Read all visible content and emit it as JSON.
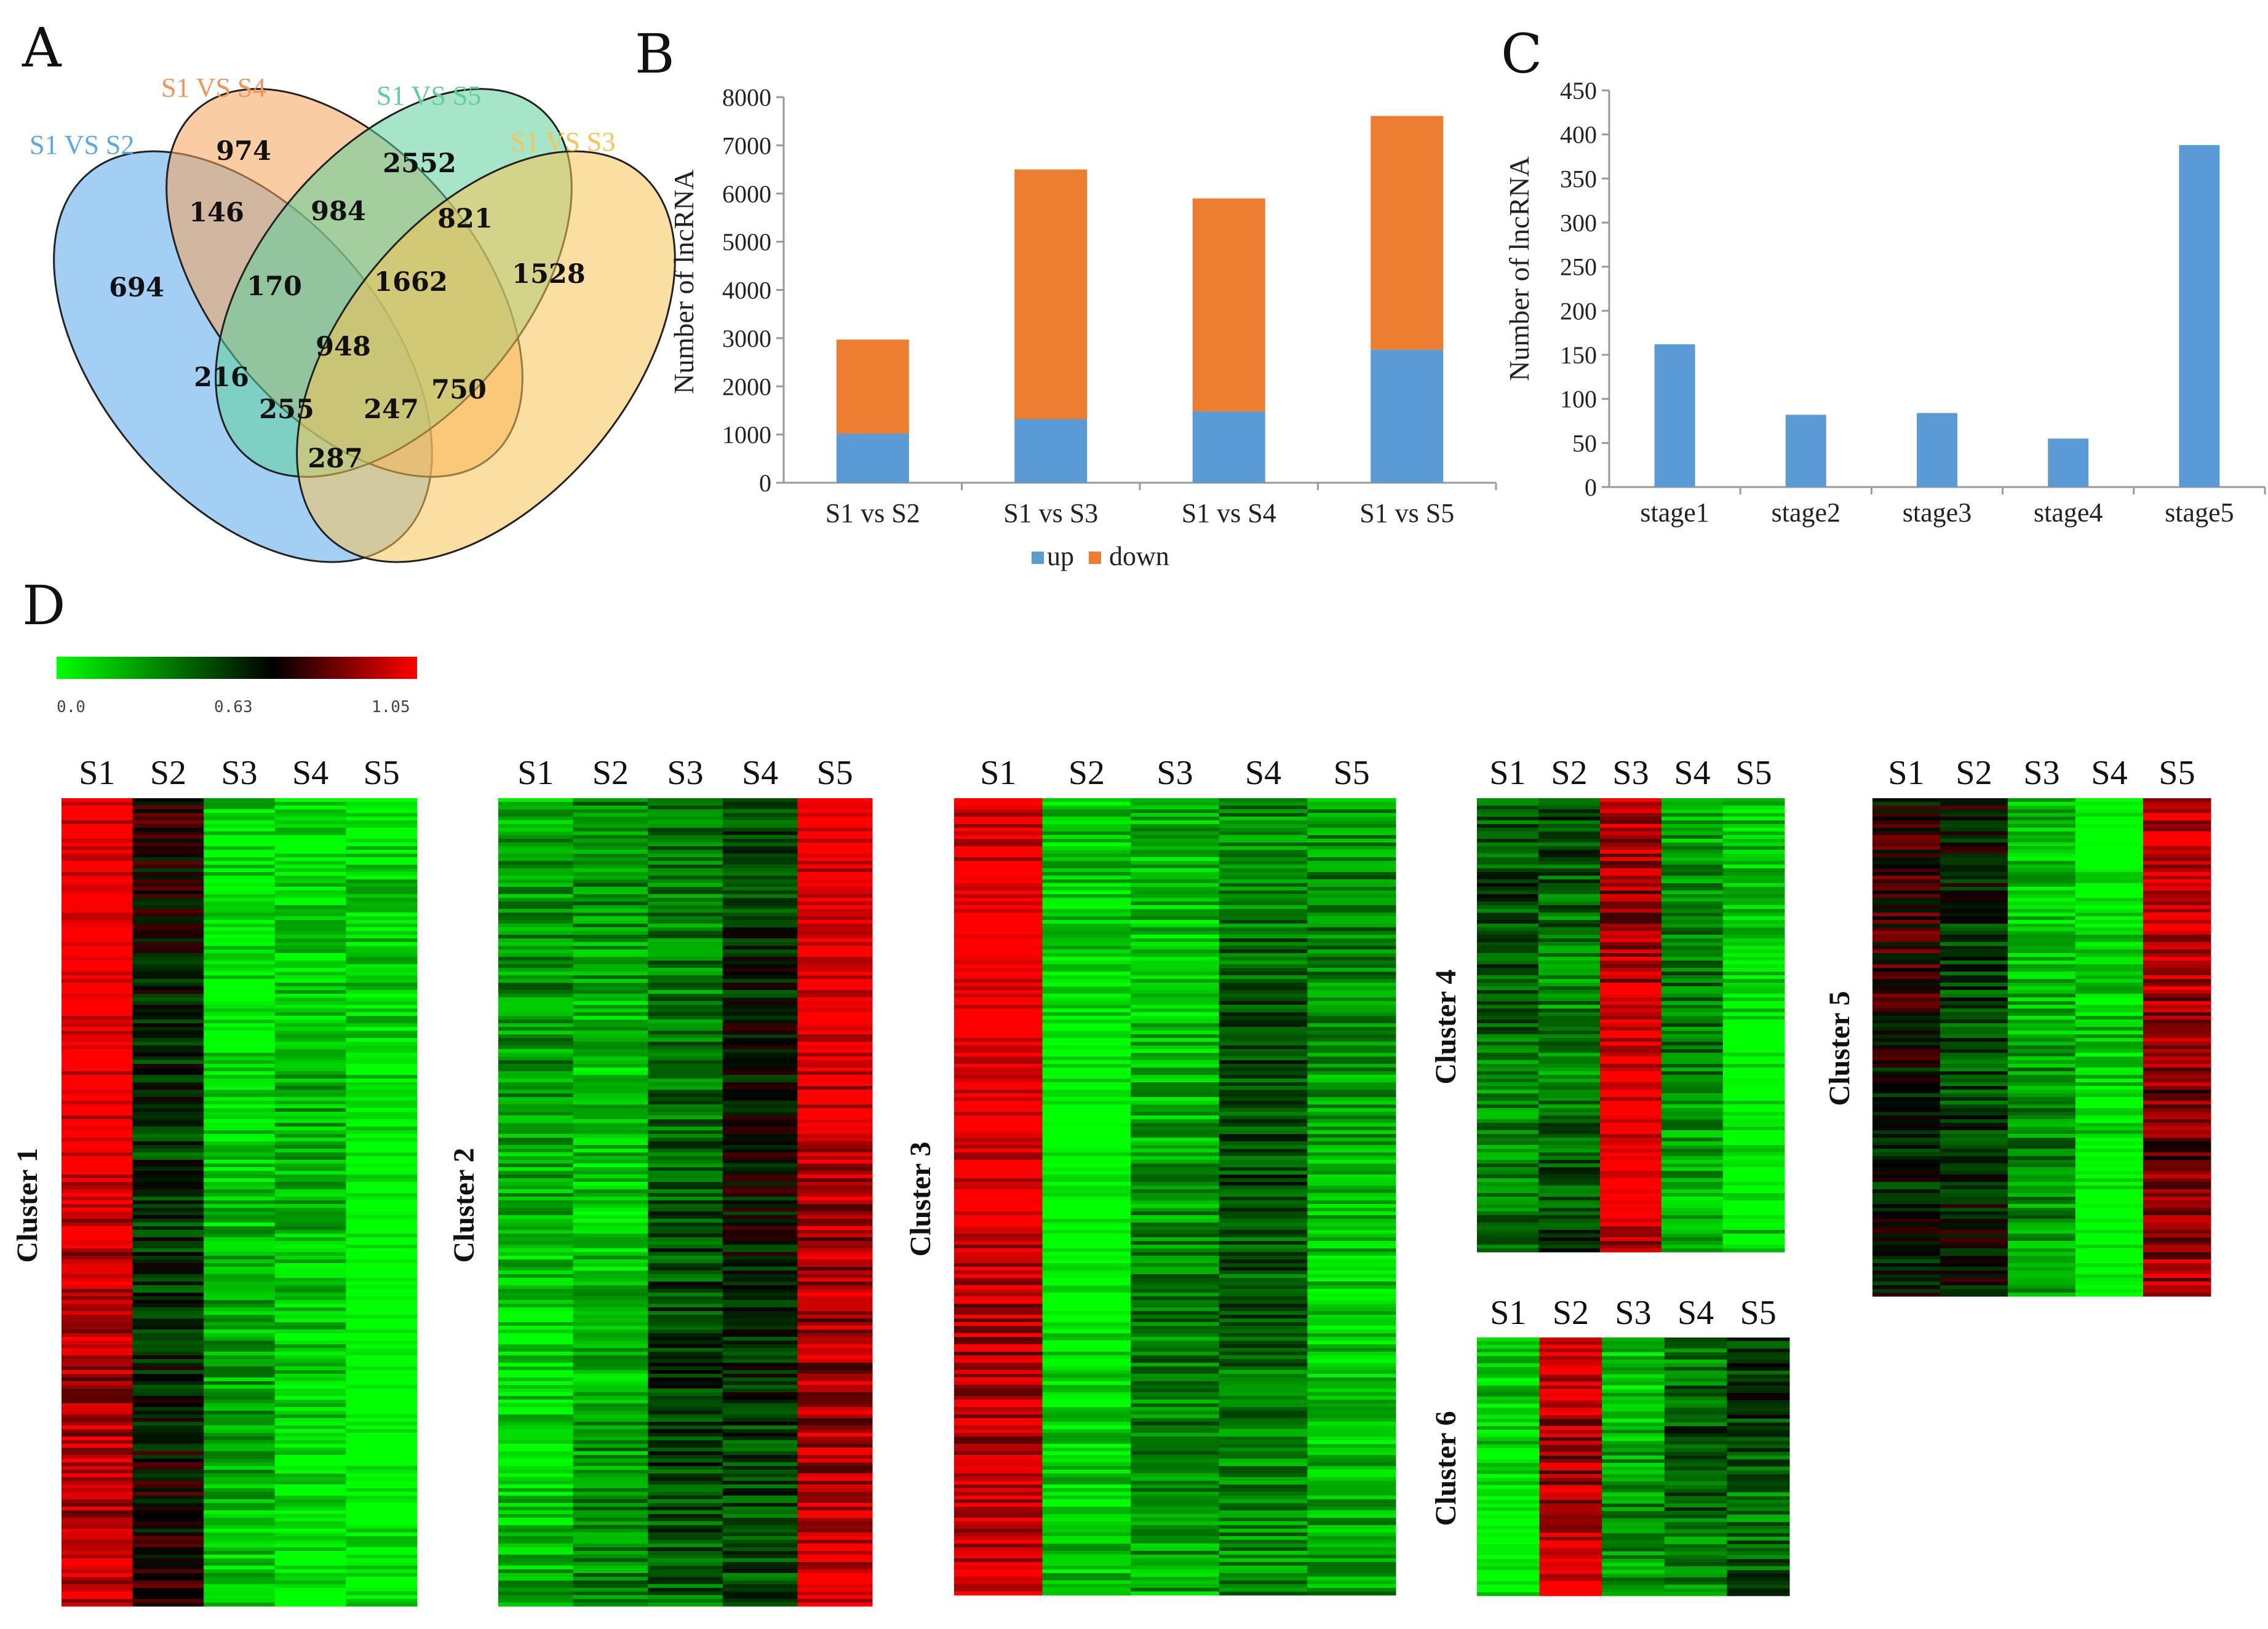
{
  "panels": {
    "a": "A",
    "b": "B",
    "c": "C",
    "d": "D"
  },
  "colors": {
    "up": "#5b9bd5",
    "down": "#ed7d31",
    "stage_bar": "#5b9bd5",
    "axis": "#999999",
    "heat_low": "#00ff00",
    "heat_mid": "#000000",
    "heat_high": "#ff0000"
  },
  "chart_data": [
    {
      "id": "venn",
      "type": "venn",
      "sets": [
        {
          "name": "S1 VS S2",
          "color": "#5aa7ec"
        },
        {
          "name": "S1 VS S4",
          "color": "#f5a25a"
        },
        {
          "name": "S1 VS S5",
          "color": "#5fcf9a"
        },
        {
          "name": "S1 VS S3",
          "color": "#f7c455"
        }
      ],
      "regions": [
        694,
        974,
        2552,
        1528,
        146,
        984,
        821,
        170,
        1662,
        948,
        216,
        750,
        255,
        247,
        287
      ]
    },
    {
      "id": "stacked",
      "type": "bar",
      "stacked": true,
      "categories": [
        "S1 vs S2",
        "S1 vs S3",
        "S1 vs S4",
        "S1 vs S5"
      ],
      "series": [
        {
          "name": "up",
          "values": [
            1020,
            1320,
            1480,
            2760
          ]
        },
        {
          "name": "down",
          "values": [
            1950,
            5180,
            4420,
            4850
          ]
        }
      ],
      "ylabel": "Number of lncRNA",
      "ylim": [
        0,
        8000
      ],
      "yticks": [
        "0",
        "1000",
        "2000",
        "3000",
        "4000",
        "5000",
        "6000",
        "7000",
        "8000"
      ],
      "legend_position": "bottom"
    },
    {
      "id": "stages",
      "type": "bar",
      "categories": [
        "stage1",
        "stage2",
        "stage3",
        "stage4",
        "stage5"
      ],
      "values": [
        162,
        82,
        84,
        55,
        388
      ],
      "ylabel": "Number of lncRNA",
      "ylim": [
        0,
        450
      ],
      "yticks": [
        "0",
        "50",
        "100",
        "150",
        "200",
        "250",
        "300",
        "350",
        "400",
        "450"
      ]
    },
    {
      "id": "heatmaps",
      "type": "heatmap",
      "scale": {
        "min_label": "0.0",
        "mid_label": "0.63",
        "max_label": "1.05"
      },
      "columns": [
        "S1",
        "S2",
        "S3",
        "S4",
        "S5"
      ],
      "clusters": [
        {
          "name": "Cluster 1",
          "columns": [
            "S1",
            "S2",
            "S3",
            "S4",
            "S5"
          ],
          "profile": [
            0.95,
            0.55,
            0.12,
            0.12,
            0.02
          ]
        },
        {
          "name": "Cluster 2",
          "columns": [
            "S1",
            "S2",
            "S3",
            "S4",
            "S5"
          ],
          "profile": [
            0.18,
            0.2,
            0.38,
            0.5,
            0.92
          ]
        },
        {
          "name": "Cluster 3",
          "columns": [
            "S1",
            "S2",
            "S3",
            "S4",
            "S5"
          ],
          "profile": [
            0.95,
            0.05,
            0.22,
            0.35,
            0.2
          ]
        },
        {
          "name": "Cluster 4",
          "columns": [
            "S1",
            "S2",
            "S3",
            "S4",
            "S5"
          ],
          "profile": [
            0.35,
            0.35,
            0.92,
            0.25,
            0.08
          ]
        },
        {
          "name": "Cluster 5",
          "columns": [
            "S1",
            "S2",
            "S3",
            "S4",
            "S5"
          ],
          "profile": [
            0.6,
            0.5,
            0.2,
            0.05,
            0.85
          ]
        },
        {
          "name": "Cluster 6",
          "columns": [
            "S1",
            "S2",
            "S3",
            "S4",
            "S5"
          ],
          "profile": [
            0.05,
            0.92,
            0.2,
            0.35,
            0.4
          ]
        }
      ]
    }
  ]
}
